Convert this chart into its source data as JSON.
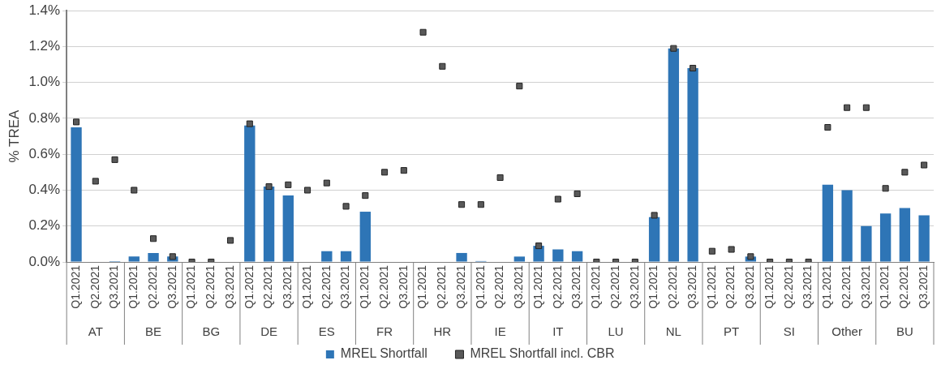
{
  "chart_data": {
    "type": "bar",
    "ylabel": "% TREA",
    "categories": [
      "Q1.2021",
      "Q2.2021",
      "Q3.2021",
      "Q1.2021",
      "Q2.2021",
      "Q3.2021",
      "Q1.2021",
      "Q2.2021",
      "Q3.2021",
      "Q1.2021",
      "Q2.2021",
      "Q3.2021",
      "Q1.2021",
      "Q2.2021",
      "Q3.2021",
      "Q1.2021",
      "Q2.2021",
      "Q3.2021",
      "Q1.2021",
      "Q2.2021",
      "Q3.2021",
      "Q1.2021",
      "Q2.2021",
      "Q3.2021",
      "Q1.2021",
      "Q2.2021",
      "Q3.2021",
      "Q1.2021",
      "Q2.2021",
      "Q3.2021",
      "Q1.2021",
      "Q2.2021",
      "Q3.2021",
      "Q1.2021",
      "Q2.2021",
      "Q3.2021",
      "Q1.2021",
      "Q2.2021",
      "Q3.2021",
      "Q1.2021",
      "Q2.2021",
      "Q3.2021",
      "Q1.2021",
      "Q2.2021",
      "Q3.2021"
    ],
    "annotations": [
      "AT",
      "BE",
      "BG",
      "DE",
      "ES",
      "FR",
      "HR",
      "IE",
      "IT",
      "LU",
      "NL",
      "PT",
      "SI",
      "Other",
      "BU"
    ],
    "series": [
      {
        "name": "MREL Shortfall",
        "color": "#2e75b6",
        "values": [
          0.75,
          0,
          0.005,
          0.03,
          0.05,
          0.03,
          0,
          0,
          0,
          0.76,
          0.42,
          0.37,
          0,
          0.06,
          0.06,
          0.28,
          0,
          0,
          0,
          0,
          0.05,
          0.005,
          0,
          0.03,
          0.09,
          0.07,
          0.06,
          0,
          0,
          0,
          0.25,
          1.19,
          1.08,
          0,
          0,
          0.03,
          0,
          0,
          0,
          0.43,
          0.4,
          0.2,
          0.27,
          0.3,
          0.26
        ]
      },
      {
        "name": "MREL Shortfall incl. CBR",
        "type": "scatter",
        "color": "#595959",
        "marker": "square",
        "values": [
          0.78,
          0.45,
          0.57,
          0.4,
          0.13,
          0.03,
          0,
          0,
          0.12,
          0.77,
          0.42,
          0.43,
          0.4,
          0.44,
          0.31,
          0.37,
          0.5,
          0.51,
          1.28,
          1.09,
          0.32,
          0.32,
          0.47,
          0.98,
          0.09,
          0.35,
          0.38,
          0,
          0,
          0,
          0.26,
          1.19,
          1.08,
          0.06,
          0.07,
          0.03,
          0,
          0,
          0,
          0.75,
          0.86,
          0.86,
          0.41,
          0.5,
          0.54
        ]
      }
    ],
    "ylim": [
      0,
      1.4
    ],
    "yticks": [
      {
        "value": 0,
        "label": "0.0%"
      },
      {
        "value": 0.2,
        "label": "0.2%"
      },
      {
        "value": 0.4,
        "label": "0.4%"
      },
      {
        "value": 0.6,
        "label": "0.6%"
      },
      {
        "value": 0.8,
        "label": "0.8%"
      },
      {
        "value": 1.0,
        "label": "1.0%"
      },
      {
        "value": 1.2,
        "label": "1.2%"
      },
      {
        "value": 1.4,
        "label": "1.4%"
      }
    ],
    "grid": "y",
    "legend": "bottom"
  }
}
